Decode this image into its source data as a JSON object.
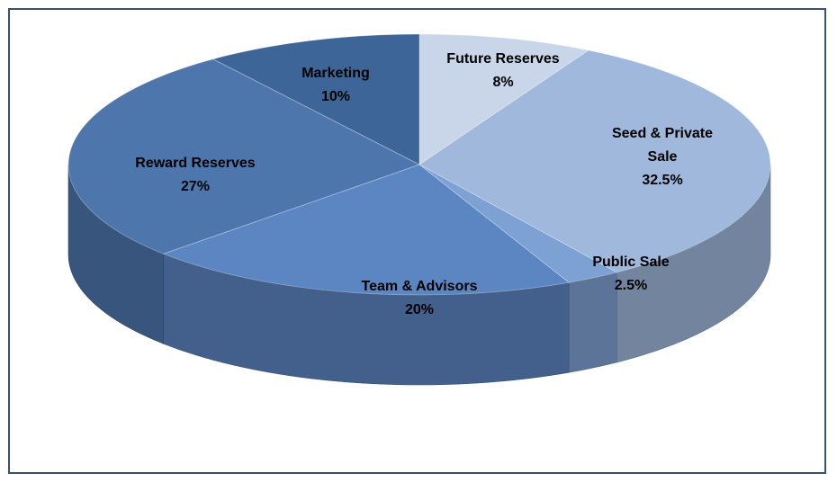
{
  "chart_data": {
    "type": "pie",
    "style": "3d",
    "categories": [
      "Future Reserves",
      "Seed & Private Sale",
      "Public Sale",
      "Team & Advisors",
      "Reward Reserves",
      "Marketing"
    ],
    "values": [
      8,
      32.5,
      2.5,
      20,
      27,
      10
    ],
    "value_labels": [
      "8%",
      "32.5%",
      "2.5%",
      "20%",
      "27%",
      "10%"
    ],
    "colors": [
      "#c9d6ea",
      "#9fb8dc",
      "#7ea1d3",
      "#5b86c1",
      "#4d76ad",
      "#3e6597"
    ]
  }
}
